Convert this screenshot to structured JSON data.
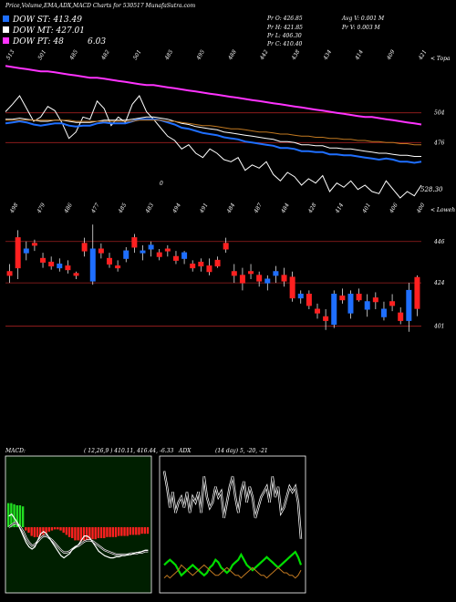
{
  "header": {
    "title": "Price,Volume,EMA,ADX,MACD Charts for 530517 MunafaSutra.com",
    "legend": [
      {
        "label": "DOW ST: 413.49",
        "color": "#1f6fff"
      },
      {
        "label": "DOW MT: 427.01",
        "color": "#ffffff"
      },
      {
        "label": "DOW PT: 48",
        "color": "#ff33ff",
        "extra": "6.03"
      }
    ],
    "ohlc": {
      "pr_o": "Pr O: 426.85",
      "pr_h": "Pr H: 421.85",
      "pr_l": "Pr L: 406.30",
      "pr_c": "Pr C: 410.40",
      "avg_v": "Avg V: 0.001 M",
      "pr_v": "Pr V: 0.003 M"
    }
  },
  "chart_data": [
    {
      "type": "line",
      "panel": "ema",
      "top_labels": [
        "513",
        "501",
        "485",
        "482",
        "501",
        "485",
        "495",
        "488",
        "442",
        "438",
        "434",
        "414",
        "409",
        "421"
      ],
      "right_label": "< Topa",
      "price_ticks": [
        "504",
        "476"
      ],
      "last_price": "528.30",
      "mid_label": "0",
      "series": [
        {
          "color": "#ffffff",
          "values": [
            505,
            512,
            520,
            508,
            496,
            500,
            510,
            506,
            495,
            480,
            486,
            500,
            498,
            515,
            508,
            492,
            500,
            495,
            512,
            520,
            505,
            498,
            490,
            482,
            478,
            470,
            474,
            466,
            462,
            470,
            466,
            460,
            458,
            462,
            450,
            455,
            452,
            458,
            446,
            440,
            448,
            444,
            436,
            442,
            438,
            445,
            430,
            438,
            434,
            440,
            432,
            436,
            430,
            428,
            440,
            432,
            424,
            430,
            426,
            436
          ]
        },
        {
          "color": "#1f6fff",
          "values": [
            494,
            495,
            496,
            495,
            493,
            492,
            493,
            494,
            494,
            492,
            491,
            492,
            492,
            494,
            495,
            494,
            494,
            494,
            496,
            498,
            498,
            498,
            497,
            495,
            493,
            490,
            489,
            487,
            485,
            484,
            483,
            481,
            480,
            479,
            477,
            476,
            475,
            474,
            473,
            471,
            471,
            470,
            468,
            468,
            467,
            467,
            465,
            465,
            464,
            464,
            463,
            462,
            461,
            460,
            461,
            460,
            458,
            458,
            457,
            458
          ]
        },
        {
          "color": "#ffffff",
          "values": [
            498,
            498,
            499,
            498,
            497,
            496,
            496,
            497,
            497,
            496,
            495,
            495,
            495,
            496,
            497,
            497,
            497,
            497,
            498,
            499,
            500,
            500,
            499,
            498,
            496,
            494,
            493,
            491,
            490,
            489,
            488,
            486,
            485,
            484,
            483,
            482,
            481,
            480,
            479,
            477,
            477,
            476,
            474,
            474,
            473,
            473,
            471,
            471,
            470,
            470,
            469,
            468,
            467,
            466,
            466,
            465,
            464,
            464,
            463,
            463
          ]
        },
        {
          "color": "#c07820",
          "values": [
            497,
            497,
            497,
            497,
            497,
            497,
            497,
            497,
            497,
            497,
            496,
            496,
            496,
            496,
            496,
            496,
            496,
            496,
            496,
            497,
            497,
            497,
            497,
            496,
            496,
            495,
            494,
            493,
            492,
            492,
            491,
            490,
            489,
            489,
            488,
            487,
            486,
            486,
            485,
            484,
            484,
            483,
            482,
            482,
            481,
            481,
            480,
            480,
            479,
            479,
            478,
            478,
            477,
            477,
            476,
            476,
            475,
            475,
            474,
            474
          ]
        },
        {
          "color": "#ff33ff",
          "values": [
            548,
            547,
            546,
            545,
            544,
            543,
            543,
            542,
            541,
            540,
            539,
            538,
            537,
            537,
            536,
            535,
            534,
            533,
            532,
            531,
            530,
            530,
            529,
            528,
            527,
            526,
            525,
            524,
            523,
            522,
            521,
            520,
            519,
            518,
            517,
            516,
            515,
            514,
            513,
            512,
            511,
            510,
            509,
            508,
            507,
            506,
            505,
            504,
            503,
            502,
            501,
            500,
            500,
            499,
            498,
            497,
            496,
            495,
            494,
            493
          ]
        }
      ]
    },
    {
      "type": "bar",
      "panel": "candles",
      "top_labels": [
        "498",
        "479",
        "486",
        "477",
        "485",
        "483",
        "494",
        "491",
        "484",
        "487",
        "484",
        "428",
        "414",
        "401",
        "406",
        "400"
      ],
      "right_label": "< Loweh",
      "price_ticks": [
        "446",
        "424",
        "401"
      ],
      "candles": [
        {
          "o": 430,
          "h": 434,
          "l": 424,
          "c": 428,
          "bull": false
        },
        {
          "o": 432,
          "h": 452,
          "l": 426,
          "c": 448,
          "bull": false
        },
        {
          "o": 440,
          "h": 446,
          "l": 436,
          "c": 442,
          "bull": true
        },
        {
          "o": 444,
          "h": 447,
          "l": 441,
          "c": 445,
          "bull": false
        },
        {
          "o": 437,
          "h": 440,
          "l": 432,
          "c": 435,
          "bull": false
        },
        {
          "o": 435,
          "h": 438,
          "l": 431,
          "c": 433,
          "bull": false
        },
        {
          "o": 434,
          "h": 437,
          "l": 430,
          "c": 432,
          "bull": true
        },
        {
          "o": 433,
          "h": 436,
          "l": 429,
          "c": 431,
          "bull": false
        },
        {
          "o": 428,
          "h": 430,
          "l": 426,
          "c": 429,
          "bull": false
        },
        {
          "o": 445,
          "h": 448,
          "l": 438,
          "c": 441,
          "bull": false
        },
        {
          "o": 425,
          "h": 455,
          "l": 423,
          "c": 442,
          "bull": true
        },
        {
          "o": 440,
          "h": 445,
          "l": 437,
          "c": 442,
          "bull": false
        },
        {
          "o": 437,
          "h": 440,
          "l": 432,
          "c": 434,
          "bull": false
        },
        {
          "o": 433,
          "h": 436,
          "l": 430,
          "c": 432,
          "bull": false
        },
        {
          "o": 437,
          "h": 443,
          "l": 435,
          "c": 441,
          "bull": true
        },
        {
          "o": 448,
          "h": 450,
          "l": 440,
          "c": 443,
          "bull": false
        },
        {
          "o": 440,
          "h": 444,
          "l": 436,
          "c": 441,
          "bull": true
        },
        {
          "o": 442,
          "h": 446,
          "l": 438,
          "c": 444,
          "bull": true
        },
        {
          "o": 440,
          "h": 442,
          "l": 436,
          "c": 438,
          "bull": false
        },
        {
          "o": 441,
          "h": 444,
          "l": 438,
          "c": 442,
          "bull": false
        },
        {
          "o": 438,
          "h": 441,
          "l": 434,
          "c": 436,
          "bull": false
        },
        {
          "o": 437,
          "h": 441,
          "l": 434,
          "c": 440,
          "bull": true
        },
        {
          "o": 434,
          "h": 436,
          "l": 430,
          "c": 432,
          "bull": false
        },
        {
          "o": 433,
          "h": 437,
          "l": 430,
          "c": 435,
          "bull": false
        },
        {
          "o": 433,
          "h": 437,
          "l": 428,
          "c": 430,
          "bull": false
        },
        {
          "o": 436,
          "h": 438,
          "l": 432,
          "c": 433,
          "bull": false
        },
        {
          "o": 445,
          "h": 448,
          "l": 440,
          "c": 442,
          "bull": false
        },
        {
          "o": 430,
          "h": 434,
          "l": 424,
          "c": 428,
          "bull": false
        },
        {
          "o": 428,
          "h": 432,
          "l": 420,
          "c": 424,
          "bull": false
        },
        {
          "o": 430,
          "h": 434,
          "l": 426,
          "c": 429,
          "bull": false
        },
        {
          "o": 428,
          "h": 430,
          "l": 422,
          "c": 425,
          "bull": false
        },
        {
          "o": 424,
          "h": 428,
          "l": 420,
          "c": 426,
          "bull": true
        },
        {
          "o": 428,
          "h": 433,
          "l": 424,
          "c": 430,
          "bull": true
        },
        {
          "o": 428,
          "h": 432,
          "l": 422,
          "c": 425,
          "bull": false
        },
        {
          "o": 427,
          "h": 430,
          "l": 414,
          "c": 416,
          "bull": false
        },
        {
          "o": 416,
          "h": 420,
          "l": 413,
          "c": 418,
          "bull": true
        },
        {
          "o": 418,
          "h": 420,
          "l": 410,
          "c": 412,
          "bull": false
        },
        {
          "o": 410,
          "h": 413,
          "l": 405,
          "c": 408,
          "bull": false
        },
        {
          "o": 406,
          "h": 410,
          "l": 399,
          "c": 404,
          "bull": false
        },
        {
          "o": 402,
          "h": 420,
          "l": 400,
          "c": 418,
          "bull": true
        },
        {
          "o": 417,
          "h": 421,
          "l": 413,
          "c": 415,
          "bull": false
        },
        {
          "o": 408,
          "h": 420,
          "l": 405,
          "c": 418,
          "bull": true
        },
        {
          "o": 418,
          "h": 421,
          "l": 414,
          "c": 415,
          "bull": false
        },
        {
          "o": 414,
          "h": 418,
          "l": 406,
          "c": 410,
          "bull": true
        },
        {
          "o": 414,
          "h": 419,
          "l": 410,
          "c": 416,
          "bull": false
        },
        {
          "o": 410,
          "h": 414,
          "l": 404,
          "c": 406,
          "bull": true
        },
        {
          "o": 414,
          "h": 418,
          "l": 409,
          "c": 412,
          "bull": false
        },
        {
          "o": 408,
          "h": 411,
          "l": 402,
          "c": 404,
          "bull": false
        },
        {
          "o": 404,
          "h": 424,
          "l": 398,
          "c": 420,
          "bull": true
        },
        {
          "o": 426.85,
          "h": 428,
          "l": 406.3,
          "c": 410.4,
          "bull": false
        }
      ]
    },
    {
      "type": "bar",
      "panel": "macd",
      "label": "MACD:",
      "params": "( 12,26,9 ) 410.11, 416.44, -6.33",
      "histogram": [
        22,
        22,
        21,
        20,
        20,
        19,
        -3,
        -5,
        -8,
        -9,
        -9,
        -8,
        -7,
        -6,
        -4,
        -3,
        -2,
        -2,
        -3,
        -5,
        -7,
        -9,
        -10,
        -12,
        -12,
        -13,
        -12,
        -12,
        -11,
        -11,
        -11,
        -10,
        -10,
        -10,
        -9,
        -9,
        -9,
        -9,
        -8,
        -8,
        -8,
        -8,
        -7,
        -7,
        -7,
        -7,
        -6,
        -6,
        -6
      ],
      "macd_line": [
        10,
        12,
        8,
        4,
        -2,
        -8,
        -14,
        -18,
        -20,
        -18,
        -12,
        -6,
        -4,
        -6,
        -10,
        -14,
        -18,
        -22,
        -26,
        -28,
        -26,
        -24,
        -20,
        -18,
        -16,
        -12,
        -8,
        -8,
        -10,
        -14,
        -18,
        -22,
        -24,
        -26,
        -27,
        -28,
        -28,
        -27,
        -27,
        -26,
        -26,
        -25,
        -25,
        -24,
        -23,
        -23,
        -22,
        -21,
        -21
      ],
      "signal_line": [
        0,
        2,
        4,
        3,
        0,
        -4,
        -10,
        -14,
        -17,
        -16,
        -13,
        -10,
        -8,
        -8,
        -10,
        -12,
        -15,
        -18,
        -21,
        -23,
        -23,
        -22,
        -20,
        -18,
        -17,
        -15,
        -13,
        -12,
        -12,
        -13,
        -15,
        -17,
        -19,
        -21,
        -22,
        -23,
        -24,
        -25,
        -25,
        -25,
        -25,
        -25,
        -24,
        -24,
        -24,
        -23,
        -23,
        -22,
        -22
      ]
    },
    {
      "type": "line",
      "panel": "adx",
      "label": "ADX",
      "params": "(14 day) 5, -20, -21",
      "series": [
        {
          "color": "#ffffff",
          "values": [
            46,
            40,
            32,
            38,
            30,
            34,
            36,
            32,
            38,
            30,
            36,
            34,
            38,
            30,
            44,
            36,
            32,
            34,
            40,
            36,
            38,
            28,
            34,
            40,
            44,
            36,
            30,
            38,
            42,
            34,
            40,
            36,
            28,
            32,
            36,
            38,
            40,
            34,
            44,
            36,
            40,
            30,
            32,
            36,
            40,
            38,
            40,
            34,
            20
          ]
        },
        {
          "color": "#00dd00",
          "values": [
            10,
            11,
            12,
            11,
            10,
            8,
            6,
            7,
            8,
            9,
            10,
            9,
            8,
            7,
            6,
            7,
            9,
            10,
            12,
            11,
            9,
            8,
            7,
            8,
            10,
            11,
            12,
            14,
            12,
            10,
            9,
            8,
            9,
            10,
            11,
            12,
            13,
            12,
            11,
            10,
            9,
            10,
            11,
            12,
            13,
            14,
            15,
            13,
            10
          ]
        },
        {
          "color": "#c07820",
          "values": [
            5,
            6,
            5,
            6,
            7,
            8,
            10,
            9,
            8,
            7,
            6,
            7,
            8,
            9,
            10,
            9,
            8,
            7,
            6,
            6,
            7,
            8,
            9,
            8,
            7,
            6,
            6,
            5,
            6,
            7,
            8,
            9,
            8,
            7,
            6,
            6,
            5,
            6,
            7,
            8,
            9,
            8,
            7,
            7,
            6,
            6,
            5,
            6,
            8
          ]
        }
      ]
    }
  ]
}
